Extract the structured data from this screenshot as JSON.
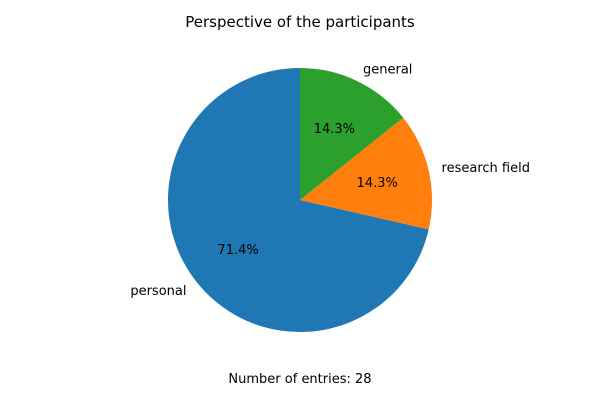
{
  "chart_data": {
    "type": "pie",
    "title": "Perspective of the participants",
    "categories": [
      "personal",
      "research field",
      "general"
    ],
    "values": [
      20,
      4,
      4
    ],
    "percent_labels": [
      "71.4%",
      "14.3%",
      "14.3%"
    ],
    "colors": [
      "#1f77b4",
      "#ff7f0e",
      "#2ca02c"
    ],
    "start_angle_deg": 90,
    "direction": "counterclockwise",
    "legend": "none",
    "caption": "Number of entries: 28"
  }
}
